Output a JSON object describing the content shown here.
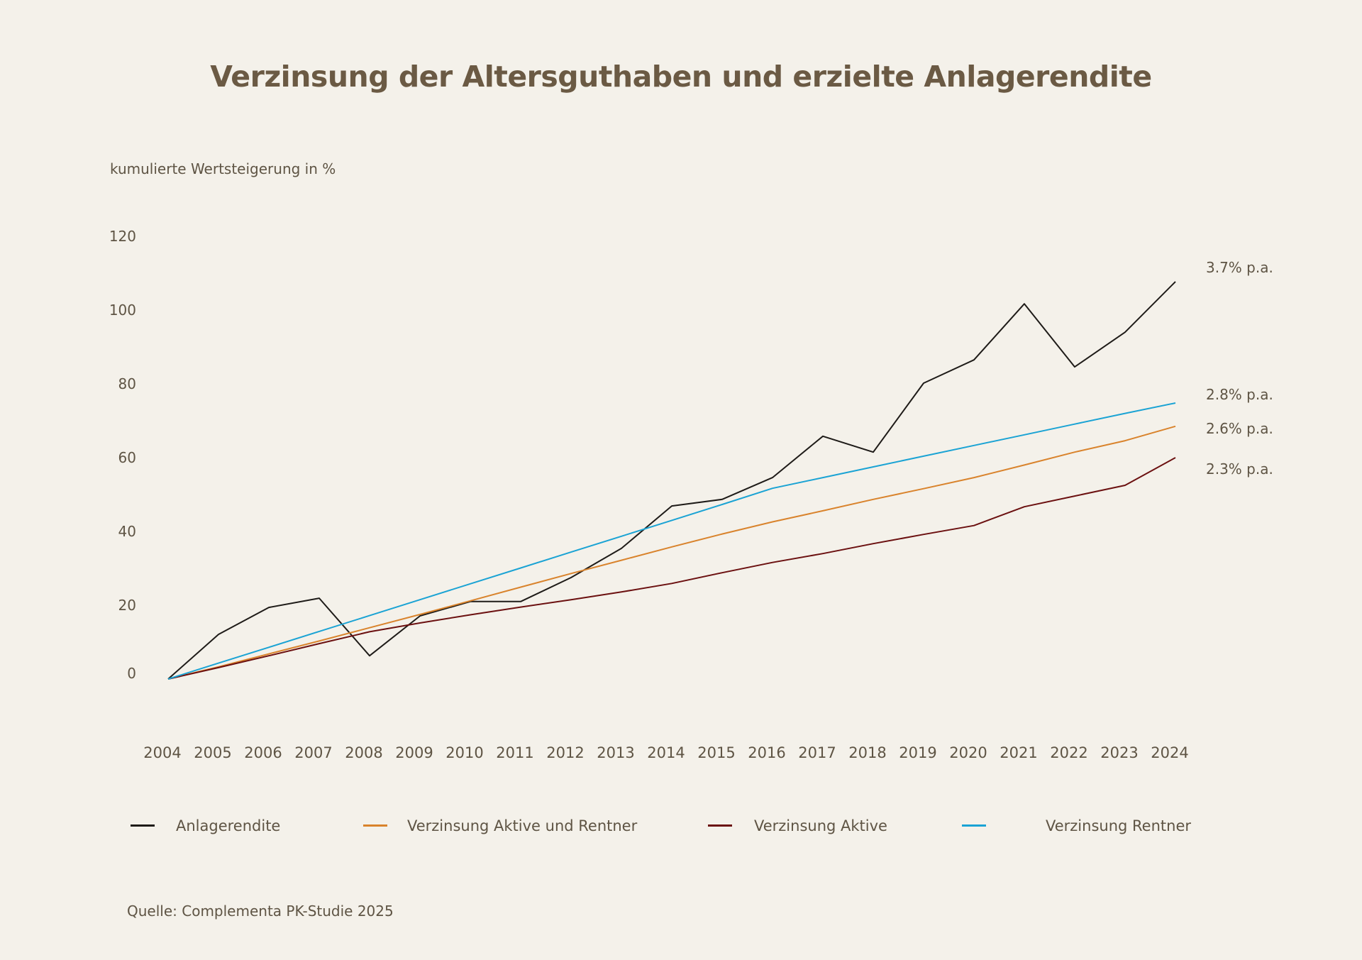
{
  "title": "Verzinsung der Altersguthaben und erzielte Anlagerendite",
  "source": "Quelle: Complementa PK-Studie 2025",
  "chart_data": {
    "type": "line",
    "title": "Verzinsung der Altersguthaben und erzielte Anlagerendite",
    "xlabel": "",
    "ylabel": "kumulierte Wertsteigerung in %",
    "x": [
      2004,
      2005,
      2006,
      2007,
      2008,
      2009,
      2010,
      2011,
      2012,
      2013,
      2014,
      2015,
      2016,
      2017,
      2018,
      2019,
      2020,
      2021,
      2022,
      2023,
      2024
    ],
    "x_tick_labels": [
      "2004",
      "2005",
      "2006",
      "2007",
      "2008",
      "2009",
      "2010",
      "2011",
      "2012",
      "2013",
      "2014",
      "2015",
      "2016",
      "2017",
      "2018",
      "2019",
      "2020",
      "2021",
      "2022",
      "2023",
      "2024"
    ],
    "y_ticks": [
      0,
      20,
      40,
      60,
      80,
      100,
      120
    ],
    "y_tick_labels": [
      "0",
      "20",
      "40",
      "60",
      "80",
      "100",
      "120"
    ],
    "ylim": [
      0,
      120
    ],
    "grid": false,
    "legend_position": "bottom",
    "series": [
      {
        "name": "Anlagerendite",
        "color": "#1e1b18",
        "end_label": "3.7% p.a.",
        "values": [
          0,
          12.1,
          19.4,
          21.9,
          6.3,
          17.1,
          21.0,
          21.0,
          27.5,
          35.4,
          46.9,
          48.7,
          54.6,
          65.8,
          61.5,
          80.2,
          86.5,
          101.7,
          84.6,
          94.0,
          107.7
        ]
      },
      {
        "name": "Verzinsung Aktive und Rentner",
        "color": "#d9832c",
        "end_label": "2.6% p.a.",
        "values": [
          0,
          3.3,
          6.8,
          10.3,
          13.9,
          17.5,
          21.2,
          24.9,
          28.6,
          32.2,
          35.8,
          39.3,
          42.6,
          45.6,
          48.7,
          51.6,
          54.6,
          58.0,
          61.5,
          64.6,
          68.5
        ]
      },
      {
        "name": "Verzinsung Aktive",
        "color": "#6b1010",
        "end_label": "2.3% p.a.",
        "values": [
          0,
          3.1,
          6.3,
          9.6,
          12.8,
          15.2,
          17.4,
          19.5,
          21.5,
          23.6,
          25.9,
          28.8,
          31.6,
          34.0,
          36.7,
          39.2,
          41.6,
          46.7,
          49.6,
          52.5,
          60.0
        ]
      },
      {
        "name": "Verzinsung Rentner",
        "color": "#1aa3d4",
        "end_label": "2.8% p.a.",
        "values": [
          0,
          4.3,
          8.6,
          12.9,
          17.2,
          21.5,
          25.8,
          30.1,
          34.4,
          38.7,
          43.0,
          47.3,
          51.7,
          54.6,
          57.5,
          60.4,
          63.3,
          66.2,
          69.1,
          72.0,
          74.8
        ]
      }
    ]
  },
  "legend": [
    {
      "label": "Anlagerendite",
      "color": "#1e1b18"
    },
    {
      "label": "Verzinsung Aktive und Rentner",
      "color": "#d9832c"
    },
    {
      "label": "Verzinsung Aktive",
      "color": "#6b1010"
    },
    {
      "label": "Verzinsung Rentner",
      "color": "#1aa3d4"
    }
  ]
}
